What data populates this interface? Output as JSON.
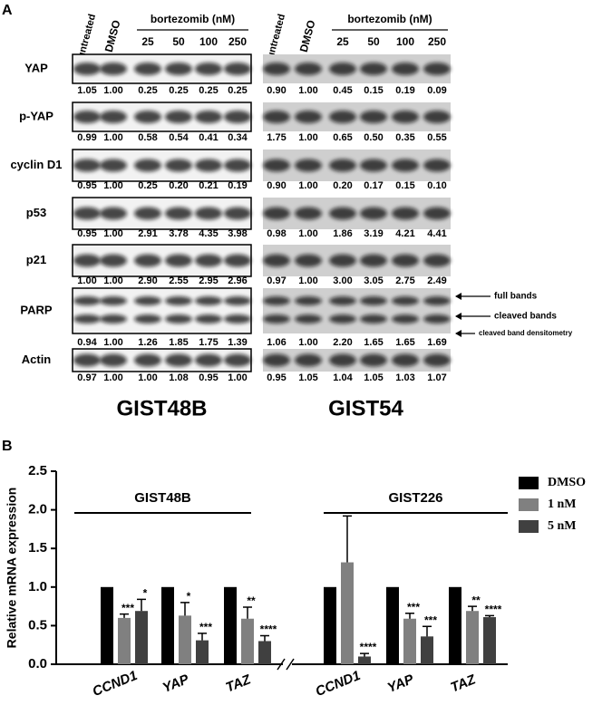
{
  "panel_a": {
    "label": "A",
    "treatment": "bortezomib (nM)",
    "proteins": [
      "YAP",
      "p-YAP",
      "cyclin D1",
      "p53",
      "p21",
      "PARP",
      "Actin"
    ],
    "annotations": [
      "full bands",
      "cleaved bands",
      "cleaved band densitometry"
    ],
    "groups": [
      {
        "name": "GIST48B",
        "lanes": [
          "untreated",
          "DMSO",
          "25",
          "50",
          "100",
          "250"
        ],
        "densitometry": [
          [
            "1.05",
            "1.00",
            "0.25",
            "0.25",
            "0.25",
            "0.25"
          ],
          [
            "0.99",
            "1.00",
            "0.58",
            "0.54",
            "0.41",
            "0.34"
          ],
          [
            "0.95",
            "1.00",
            "0.25",
            "0.20",
            "0.21",
            "0.19"
          ],
          [
            "0.95",
            "1.00",
            "2.91",
            "3.78",
            "4.35",
            "3.98"
          ],
          [
            "1.00",
            "1.00",
            "2.90",
            "2.55",
            "2.95",
            "2.96"
          ],
          [
            "0.94",
            "1.00",
            "1.26",
            "1.85",
            "1.75",
            "1.39"
          ],
          [
            "0.97",
            "1.00",
            "1.00",
            "1.08",
            "0.95",
            "1.00"
          ]
        ]
      },
      {
        "name": "GIST54",
        "lanes": [
          "untreated",
          "DMSO",
          "25",
          "50",
          "100",
          "250"
        ],
        "densitometry": [
          [
            "0.90",
            "1.00",
            "0.45",
            "0.15",
            "0.19",
            "0.09"
          ],
          [
            "1.75",
            "1.00",
            "0.65",
            "0.50",
            "0.35",
            "0.55"
          ],
          [
            "0.90",
            "1.00",
            "0.20",
            "0.17",
            "0.15",
            "0.10"
          ],
          [
            "0.98",
            "1.00",
            "1.86",
            "3.19",
            "4.21",
            "4.41"
          ],
          [
            "0.97",
            "1.00",
            "3.00",
            "3.05",
            "2.75",
            "2.49"
          ],
          [
            "1.06",
            "1.00",
            "2.20",
            "1.65",
            "1.65",
            "1.69"
          ],
          [
            "0.95",
            "1.05",
            "1.04",
            "1.05",
            "1.03",
            "1.07"
          ]
        ]
      }
    ]
  },
  "chart_data": {
    "type": "bar",
    "label": "B",
    "ylabel": "Relative mRNA expression",
    "categories": [
      "CCND1",
      "YAP",
      "TAZ",
      "CCND1",
      "YAP",
      "TAZ"
    ],
    "groups": [
      "GIST48B",
      "GIST226"
    ],
    "ylim": [
      0,
      2.5
    ],
    "yticks": [
      {
        "value": 0,
        "label": "0.0"
      },
      {
        "value": 0.5,
        "label": "0.5"
      },
      {
        "value": 1,
        "label": "1.0"
      },
      {
        "value": 1.5,
        "label": "1.5"
      },
      {
        "value": 2,
        "label": "2.0"
      },
      {
        "value": 2.5,
        "label": "2.5"
      }
    ],
    "series": [
      {
        "name": "DMSO",
        "color": "#000000",
        "values": [
          1,
          1,
          1,
          1,
          1,
          1
        ]
      },
      {
        "name": "1 nM",
        "color": "#808080",
        "values": [
          0.6,
          0.63,
          0.59,
          1.32,
          0.59,
          0.69
        ],
        "errors": [
          0.05,
          0.17,
          0.15,
          0.6,
          0.07,
          0.06
        ],
        "significance": [
          "***",
          "*",
          "**",
          null,
          "***",
          "**"
        ]
      },
      {
        "name": "5 nM",
        "color": "#404040",
        "values": [
          0.69,
          0.31,
          0.3,
          0.1,
          0.36,
          0.61
        ],
        "errors": [
          0.15,
          0.09,
          0.07,
          0.04,
          0.13,
          0.02
        ],
        "significance": [
          "*",
          "***",
          "****",
          "****",
          "***",
          "****"
        ]
      }
    ]
  }
}
